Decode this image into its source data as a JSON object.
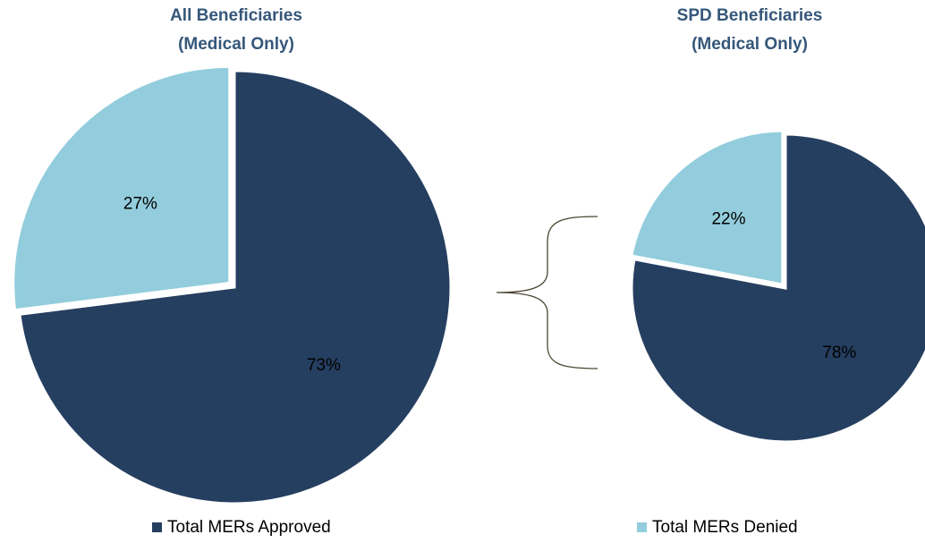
{
  "chart_data": [
    {
      "type": "pie",
      "title": [
        "All Beneficiaries",
        "(Medical Only)"
      ],
      "values": [
        73,
        27
      ],
      "value_labels": [
        "73%",
        "27%"
      ],
      "colors": [
        "#253f60",
        "#93cddd"
      ]
    },
    {
      "type": "pie",
      "title": [
        "SPD Beneficiaries",
        "(Medical Only)"
      ],
      "values": [
        78,
        22
      ],
      "value_labels": [
        "78%",
        "22%"
      ],
      "colors": [
        "#253f60",
        "#93cddd"
      ]
    }
  ],
  "legend": [
    {
      "name": "Total MERs Approved",
      "color": "#253f60"
    },
    {
      "name": "Total MERs Denied",
      "color": "#93cddd"
    }
  ]
}
